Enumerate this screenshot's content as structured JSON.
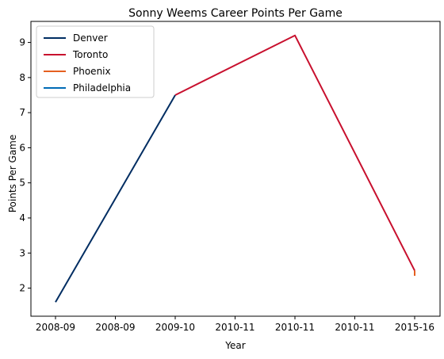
{
  "chart_data": {
    "type": "line",
    "title": "Sonny Weems Career Points Per Game",
    "xlabel": "Year",
    "ylabel": "Points Per Game",
    "categories": [
      "2008-09",
      "2008-09",
      "2009-10",
      "2010-11",
      "2010-11",
      "2010-11",
      "2015-16"
    ],
    "ylim": [
      1.2,
      9.6
    ],
    "yticks": [
      2,
      3,
      4,
      5,
      6,
      7,
      8,
      9
    ],
    "grid": false,
    "legend_placement": "top-left",
    "series": [
      {
        "name": "Denver",
        "color": "#002d62",
        "points": [
          [
            0,
            1.6
          ],
          [
            2,
            7.5
          ]
        ]
      },
      {
        "name": "Toronto",
        "color": "#c8102e",
        "points": [
          [
            2,
            7.5
          ],
          [
            4,
            9.2
          ],
          [
            6,
            2.5
          ]
        ]
      },
      {
        "name": "Phoenix",
        "color": "#e56020",
        "points": [
          [
            6,
            2.35
          ],
          [
            6,
            2.5
          ]
        ]
      },
      {
        "name": "Philadelphia",
        "color": "#006bb6",
        "points": [
          [
            6,
            2.4
          ],
          [
            6,
            2.4
          ]
        ]
      }
    ]
  }
}
